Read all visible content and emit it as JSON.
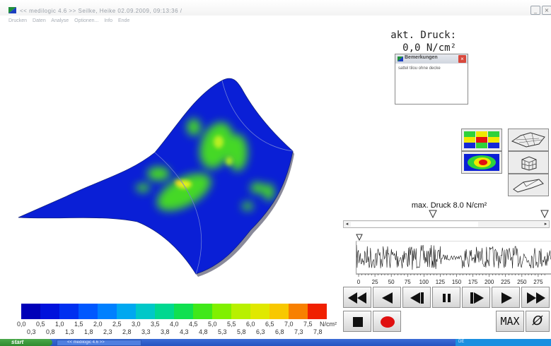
{
  "window": {
    "title": "<< medilogic 4.6 >>   Seilke, Heike  02.09.2009, 09:13:36   /",
    "minimize_icon": "minimize-icon",
    "close_icon": "close-icon",
    "minimize_glyph": "_",
    "close_glyph": "×"
  },
  "menu": {
    "items": [
      "Drucken",
      "Daten",
      "Analyse",
      "Optionen...",
      "Info",
      "Ende"
    ]
  },
  "pressure": {
    "label": "akt. Druck:",
    "value": "0,0 N/cm²"
  },
  "notes": {
    "title": "Bemerkungen",
    "text": "sattel tilou ohne decke",
    "close_glyph": "×"
  },
  "view_buttons": [
    {
      "name": "grid-view-button",
      "icon": "pressure-grid-icon"
    },
    {
      "name": "saddle-wireframe-button",
      "icon": "wireframe-saddle-icon"
    },
    {
      "name": "contour-view-button",
      "icon": "pressure-contour-icon"
    },
    {
      "name": "box-3d-button",
      "icon": "3d-box-icon"
    },
    {
      "name": "saddle-3d-button",
      "icon": "saddle-3d-icon"
    }
  ],
  "max_pressure": {
    "label": "max. Druck 8.0 N/cm²"
  },
  "timeline": {
    "tick_labels": [
      "0",
      "25",
      "50",
      "75",
      "100",
      "125",
      "150",
      "175",
      "200",
      "225",
      "250",
      "275"
    ]
  },
  "playback": {
    "buttons": [
      "fast-rewind",
      "step-back",
      "prev-frame",
      "pause",
      "next-frame",
      "play",
      "fast-forward"
    ],
    "stop": "stop",
    "record": "record",
    "max_label": "MAX",
    "avg_label": "Ø"
  },
  "colors": {
    "blue": "#0a1fd6",
    "green": "#39d21e",
    "yellow": "#f0f000",
    "red": "#e3110e",
    "record_red": "#e01010"
  },
  "colorbar": {
    "unit": "N/cm²",
    "top_labels": [
      "0,0",
      "0,5",
      "1,0",
      "1,5",
      "2,0",
      "2,5",
      "3,0",
      "3,5",
      "4,0",
      "4,5",
      "5,0",
      "5,5",
      "6,0",
      "6,5",
      "7,0",
      "7,5"
    ],
    "bottom_labels": [
      "0,3",
      "0,8",
      "1,3",
      "1,8",
      "2,3",
      "2,8",
      "3,3",
      "3,8",
      "4,3",
      "4,8",
      "5,3",
      "5,8",
      "6,3",
      "6,8",
      "7,3",
      "7,8"
    ],
    "swatches": [
      "#0000b8",
      "#0012dc",
      "#0030f0",
      "#0058ff",
      "#0080ff",
      "#00a8f0",
      "#00c8c8",
      "#00d890",
      "#10e050",
      "#40e81a",
      "#80f000",
      "#b8f000",
      "#e0e800",
      "#f8c800",
      "#f88000",
      "#f02000"
    ]
  },
  "taskbar": {
    "start_label": "start",
    "task_label": "<< medilogic 4.6 >>",
    "tray_text": "DE"
  }
}
